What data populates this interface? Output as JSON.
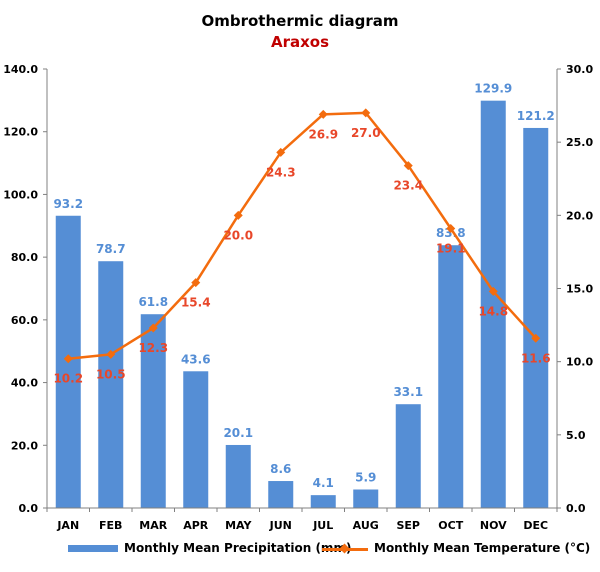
{
  "colors": {
    "bar": "#558ed5",
    "bar_label": "#558ed5",
    "line": "#f36c0e",
    "line_label": "#e8472a",
    "subtitle": "#c00000",
    "axis": "#808080",
    "grid": "#d9d9d9"
  },
  "chart_data": {
    "type": "bar",
    "title": "Ombrothermic diagram",
    "subtitle": "Araxos",
    "categories": [
      "JAN",
      "FEB",
      "MAR",
      "APR",
      "MAY",
      "JUN",
      "JUL",
      "AUG",
      "SEP",
      "OCT",
      "NOV",
      "DEC"
    ],
    "series": [
      {
        "name": "Monthly Mean Precipitation (mm)",
        "type": "bar",
        "axis": "left",
        "values": [
          93.2,
          78.7,
          61.8,
          43.6,
          20.1,
          8.6,
          4.1,
          5.9,
          33.1,
          83.8,
          129.9,
          121.2
        ],
        "labels": [
          "93.2",
          "78.7",
          "61.8",
          "43.6",
          "20.1",
          "8.6",
          "4.1",
          "5.9",
          "33.1",
          "83.8",
          "129.9",
          "121.2"
        ]
      },
      {
        "name": "Monthly Mean Temperature (°C)",
        "type": "line",
        "axis": "right",
        "marker": "diamond",
        "values": [
          10.2,
          10.5,
          12.3,
          15.4,
          20.0,
          24.3,
          26.9,
          27.0,
          23.4,
          19.1,
          14.8,
          11.6
        ],
        "labels": [
          "10.2",
          "10.5",
          "12.3",
          "15.4",
          "20.0",
          "24.3",
          "26.9",
          "27.0",
          "23.4",
          "19.1",
          "14.8",
          "11.6"
        ]
      }
    ],
    "y_left": {
      "range": [
        0,
        140
      ],
      "ticks": [
        0,
        20,
        40,
        60,
        80,
        100,
        120,
        140
      ],
      "tick_labels": [
        "0.0",
        "20.0",
        "40.0",
        "60.0",
        "80.0",
        "100.0",
        "120.0",
        "140.0"
      ]
    },
    "y_right": {
      "range": [
        0,
        30
      ],
      "ticks": [
        0,
        5,
        10,
        15,
        20,
        25,
        30
      ],
      "tick_labels": [
        "0.0",
        "5.0",
        "10.0",
        "15.0",
        "20.0",
        "25.0",
        "30.0"
      ]
    },
    "grid": false,
    "legend_position": "bottom"
  }
}
